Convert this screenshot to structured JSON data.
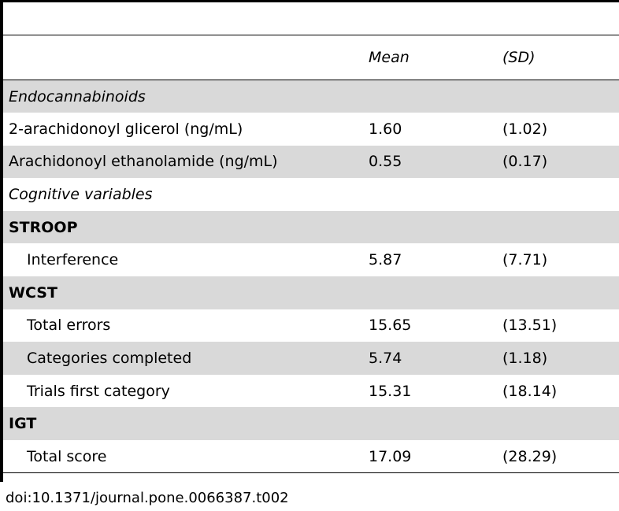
{
  "table": {
    "headers": [
      "",
      "Mean",
      "(SD)"
    ],
    "rows": [
      {
        "label": "Endocannabinoids",
        "mean": "",
        "sd": "",
        "kind": "section",
        "shaded": true
      },
      {
        "label": "2-arachidonoyl glicerol (ng/mL)",
        "mean": "1.60",
        "sd": "(1.02)",
        "kind": "plain",
        "shaded": false
      },
      {
        "label": "Arachidonoyl ethanolamide (ng/mL)",
        "mean": "0.55",
        "sd": "(0.17)",
        "kind": "plain",
        "shaded": true
      },
      {
        "label": "Cognitive variables",
        "mean": "",
        "sd": "",
        "kind": "section",
        "shaded": false
      },
      {
        "label": "STROOP",
        "mean": "",
        "sd": "",
        "kind": "group",
        "shaded": true
      },
      {
        "label": "Interference",
        "mean": "5.87",
        "sd": "(7.71)",
        "kind": "sub",
        "shaded": false
      },
      {
        "label": "WCST",
        "mean": "",
        "sd": "",
        "kind": "group",
        "shaded": true
      },
      {
        "label": "Total errors",
        "mean": "15.65",
        "sd": "(13.51)",
        "kind": "sub",
        "shaded": false
      },
      {
        "label": "Categories completed",
        "mean": "5.74",
        "sd": "(1.18)",
        "kind": "sub",
        "shaded": true
      },
      {
        "label": "Trials first category",
        "mean": "15.31",
        "sd": "(18.14)",
        "kind": "sub",
        "shaded": false
      },
      {
        "label": "IGT",
        "mean": "",
        "sd": "",
        "kind": "group",
        "shaded": true
      },
      {
        "label": "Total score",
        "mean": "17.09",
        "sd": "(28.29)",
        "kind": "sub",
        "shaded": false
      }
    ]
  },
  "footer": {
    "doi": "doi:10.1371/journal.pone.0066387.t002"
  }
}
